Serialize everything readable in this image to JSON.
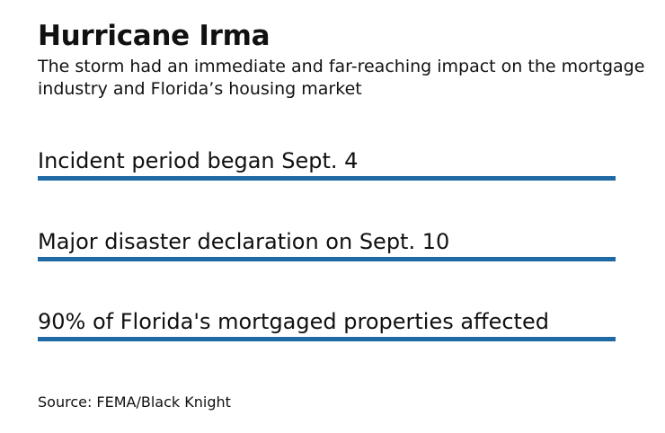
{
  "title": "Hurricane Irma",
  "subtitle": "The storm had an immediate and far-reaching impact on the mortgage industry and Florida’s housing market",
  "accent_color": "#1f6aa5",
  "facts": [
    {
      "text": "Incident period began Sept. 4"
    },
    {
      "text": "Major disaster declaration on Sept. 10"
    },
    {
      "text": "90% of Florida's mortgaged properties affected"
    }
  ],
  "source": "Source: FEMA/Black Knight"
}
